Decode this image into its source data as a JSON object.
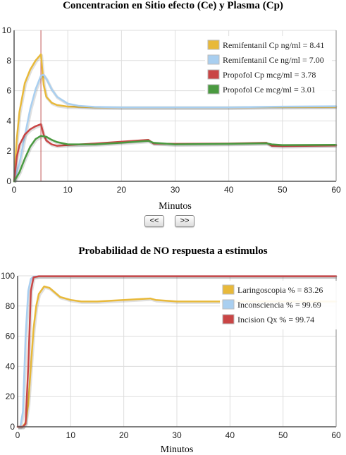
{
  "nav": {
    "prev_label": "<<",
    "next_label": ">>"
  },
  "chart_data": [
    {
      "type": "line",
      "title": "Concentracion en Sitio efecto (Ce) y Plasma (Cp)",
      "xlabel": "Minutos",
      "ylabel": "",
      "xlim": [
        0,
        60
      ],
      "ylim": [
        0,
        10
      ],
      "xticks": [
        0,
        10,
        20,
        30,
        40,
        50,
        60
      ],
      "yticks": [
        0,
        2,
        4,
        6,
        8,
        10
      ],
      "grid": true,
      "legend_position": "top-right",
      "marker_x": 5,
      "marker_color": "#c05050",
      "series": [
        {
          "name": "Remifentanil Cp ng/ml = 8.41",
          "color": "#e8b93a",
          "x": [
            0,
            0.5,
            1,
            2,
            3,
            4,
            5,
            5.5,
            6,
            7,
            8,
            10,
            15,
            20,
            30,
            40,
            50,
            60
          ],
          "y": [
            0,
            2.8,
            4.6,
            6.5,
            7.4,
            8.0,
            8.41,
            6.4,
            5.6,
            5.2,
            5.05,
            4.95,
            4.9,
            4.9,
            4.9,
            4.9,
            4.92,
            4.93
          ]
        },
        {
          "name": "Remifentanil Ce ng/ml = 7.00",
          "color": "#a9cff0",
          "x": [
            0,
            1,
            2,
            3,
            4,
            5,
            5.5,
            6,
            7,
            8,
            10,
            12,
            15,
            20,
            30,
            40,
            50,
            60
          ],
          "y": [
            0,
            1.2,
            3.0,
            4.8,
            6.1,
            7.0,
            7.05,
            6.8,
            6.1,
            5.6,
            5.15,
            5.0,
            4.93,
            4.9,
            4.9,
            4.9,
            4.95,
            4.97
          ]
        },
        {
          "name": "Propofol Cp mcg/ml = 3.78",
          "color": "#c94545",
          "x": [
            0,
            0.5,
            1,
            2,
            3,
            4,
            5,
            5.5,
            6,
            7,
            8,
            10,
            15,
            20,
            25,
            26,
            30,
            40,
            47,
            48,
            50,
            60
          ],
          "y": [
            0,
            1.6,
            2.4,
            3.1,
            3.45,
            3.65,
            3.78,
            3.1,
            2.7,
            2.45,
            2.35,
            2.4,
            2.5,
            2.62,
            2.75,
            2.5,
            2.48,
            2.5,
            2.55,
            2.35,
            2.33,
            2.37
          ]
        },
        {
          "name": "Propofol Ce mcg/ml = 3.01",
          "color": "#4a9a40",
          "x": [
            0,
            1,
            2,
            3,
            4,
            5,
            6,
            7,
            8,
            10,
            15,
            20,
            25,
            26,
            30,
            40,
            47,
            48,
            50,
            60
          ],
          "y": [
            0,
            0.6,
            1.5,
            2.3,
            2.8,
            3.01,
            2.95,
            2.75,
            2.6,
            2.45,
            2.45,
            2.55,
            2.68,
            2.55,
            2.45,
            2.48,
            2.52,
            2.45,
            2.4,
            2.42
          ]
        }
      ]
    },
    {
      "type": "line",
      "title": "Probabilidad de NO respuesta a estimulos",
      "xlabel": "Minutos",
      "ylabel": "",
      "xlim": [
        0,
        60
      ],
      "ylim": [
        0,
        100
      ],
      "xticks": [
        0,
        10,
        20,
        30,
        40,
        50,
        60
      ],
      "yticks": [
        0,
        20,
        40,
        60,
        80,
        100
      ],
      "grid": true,
      "legend_position": "top-right",
      "series": [
        {
          "name": "Laringoscopia % = 83.26",
          "color": "#e8b93a",
          "x": [
            0,
            1,
            1.5,
            2,
            2.5,
            3,
            3.5,
            4,
            5,
            6,
            7,
            8,
            10,
            12,
            15,
            20,
            25,
            26,
            30,
            40,
            50,
            60
          ],
          "y": [
            0,
            0,
            3,
            15,
            40,
            65,
            80,
            88,
            93,
            92,
            89,
            86,
            84,
            83,
            83,
            84,
            85,
            84,
            83,
            83,
            83,
            83
          ]
        },
        {
          "name": "Inconsciencia % = 99.69",
          "color": "#a9cff0",
          "x": [
            0,
            0.5,
            1,
            1.5,
            2,
            2.5,
            3,
            4,
            5,
            10,
            20,
            30,
            40,
            50,
            60
          ],
          "y": [
            0,
            0,
            10,
            60,
            90,
            98,
            99.5,
            99.7,
            99.7,
            99.7,
            99.7,
            99.7,
            99.7,
            99.7,
            99.7
          ]
        },
        {
          "name": "Incision Qx % = 99.74",
          "color": "#c94545",
          "x": [
            0,
            1,
            1.5,
            2,
            2.5,
            3,
            4,
            5,
            10,
            20,
            30,
            40,
            50,
            60
          ],
          "y": [
            0,
            0,
            2,
            40,
            90,
            99,
            99.7,
            99.74,
            99.74,
            99.74,
            99.74,
            99.74,
            99.74,
            99.74
          ]
        }
      ]
    }
  ]
}
